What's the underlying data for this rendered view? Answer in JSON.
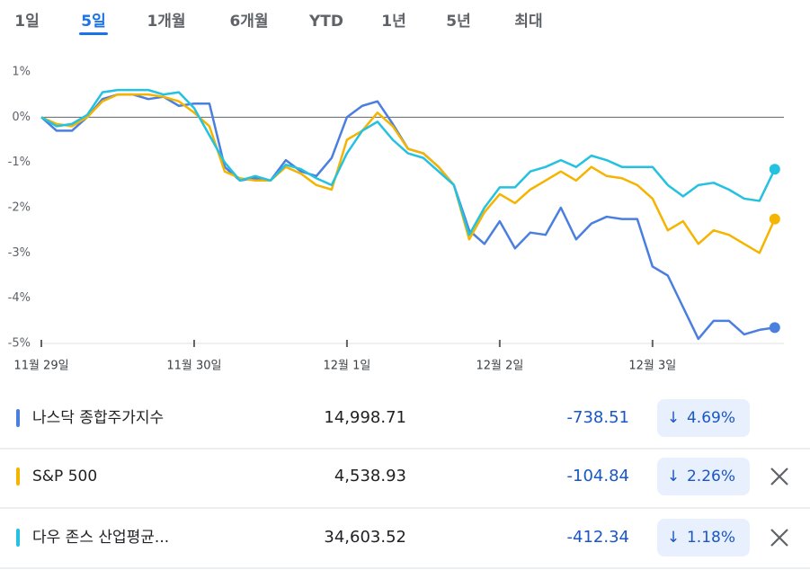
{
  "tabs": {
    "items": [
      "1일",
      "5일",
      "1개월",
      "6개월",
      "YTD",
      "1년",
      "5년",
      "최대"
    ],
    "selected": 1
  },
  "chart_data": {
    "type": "line",
    "x": [
      0,
      0.1,
      0.2,
      0.3,
      0.4,
      0.5,
      0.6,
      0.7,
      0.8,
      0.9,
      1,
      1.1,
      1.2,
      1.3,
      1.4,
      1.5,
      1.6,
      1.7,
      1.8,
      1.9,
      2,
      2.1,
      2.2,
      2.3,
      2.4,
      2.5,
      2.6,
      2.7,
      2.8,
      2.9,
      3,
      3.1,
      3.2,
      3.3,
      3.4,
      3.5,
      3.6,
      3.7,
      3.8,
      3.9,
      4,
      4.1,
      4.2,
      4.3,
      4.4,
      4.5,
      4.6,
      4.7,
      4.8
    ],
    "series": [
      {
        "name": "나스닥 종합주가지수",
        "color": "#4a7fe0",
        "values": [
          0,
          -0.3,
          -0.3,
          0,
          0.4,
          0.5,
          0.5,
          0.4,
          0.45,
          0.25,
          0.3,
          0.3,
          -1.1,
          -1.4,
          -1.35,
          -1.4,
          -0.95,
          -1.2,
          -1.3,
          -0.9,
          0,
          0.25,
          0.35,
          -0.15,
          -0.7,
          -0.8,
          -1.1,
          -1.5,
          -2.5,
          -2.8,
          -2.3,
          -2.9,
          -2.55,
          -2.6,
          -2,
          -2.7,
          -2.35,
          -2.2,
          -2.25,
          -2.25,
          -3.3,
          -3.5,
          -4.2,
          -4.9,
          -4.5,
          -4.5,
          -4.8,
          -4.7,
          -4.65
        ]
      },
      {
        "name": "S&P 500",
        "color": "#f4b400",
        "values": [
          0,
          -0.15,
          -0.2,
          0,
          0.35,
          0.5,
          0.5,
          0.5,
          0.45,
          0.35,
          0.1,
          -0.2,
          -1.2,
          -1.35,
          -1.4,
          -1.4,
          -1.1,
          -1.25,
          -1.5,
          -1.6,
          -0.5,
          -0.3,
          0.1,
          -0.2,
          -0.7,
          -0.8,
          -1.1,
          -1.5,
          -2.7,
          -2.1,
          -1.7,
          -1.9,
          -1.6,
          -1.4,
          -1.2,
          -1.4,
          -1.1,
          -1.3,
          -1.35,
          -1.5,
          -1.8,
          -2.5,
          -2.3,
          -2.8,
          -2.5,
          -2.6,
          -2.8,
          -3,
          -2.25
        ]
      },
      {
        "name": "다우 존스 산업평균...",
        "color": "#24c1e0",
        "values": [
          0,
          -0.2,
          -0.15,
          0.05,
          0.55,
          0.6,
          0.6,
          0.6,
          0.5,
          0.55,
          0.2,
          -0.4,
          -1,
          -1.4,
          -1.3,
          -1.4,
          -1.05,
          -1.15,
          -1.35,
          -1.5,
          -0.8,
          -0.3,
          -0.1,
          -0.5,
          -0.8,
          -0.9,
          -1.2,
          -1.5,
          -2.6,
          -2,
          -1.55,
          -1.55,
          -1.2,
          -1.1,
          -0.95,
          -1.1,
          -0.85,
          -0.95,
          -1.1,
          -1.1,
          -1.1,
          -1.5,
          -1.75,
          -1.5,
          -1.45,
          -1.6,
          -1.8,
          -1.85,
          -1.15
        ]
      }
    ],
    "xlim": [
      0,
      4.86
    ],
    "xticks": [
      {
        "value": 0,
        "label": "11월 29일"
      },
      {
        "value": 1,
        "label": "11월 30일"
      },
      {
        "value": 2,
        "label": "12월 1일"
      },
      {
        "value": 3,
        "label": "12월 2일"
      },
      {
        "value": 4,
        "label": "12월 3일"
      }
    ],
    "ylim": [
      -5,
      1
    ],
    "yticks": [
      {
        "value": 1,
        "label": "1%"
      },
      {
        "value": 0,
        "label": "0%"
      },
      {
        "value": -1,
        "label": "-1%"
      },
      {
        "value": -2,
        "label": "-2%"
      },
      {
        "value": -3,
        "label": "-3%"
      },
      {
        "value": -4,
        "label": "-4%"
      },
      {
        "value": -5,
        "label": "-5%"
      }
    ],
    "zero_line": true
  },
  "table": {
    "rows": [
      {
        "price": "14,998.71",
        "change": "-738.51",
        "percent": "4.69%",
        "removable": false
      },
      {
        "price": "4,538.93",
        "change": "-104.84",
        "percent": "2.26%",
        "removable": true
      },
      {
        "price": "34,603.52",
        "change": "-412.34",
        "percent": "1.18%",
        "removable": true
      }
    ]
  }
}
